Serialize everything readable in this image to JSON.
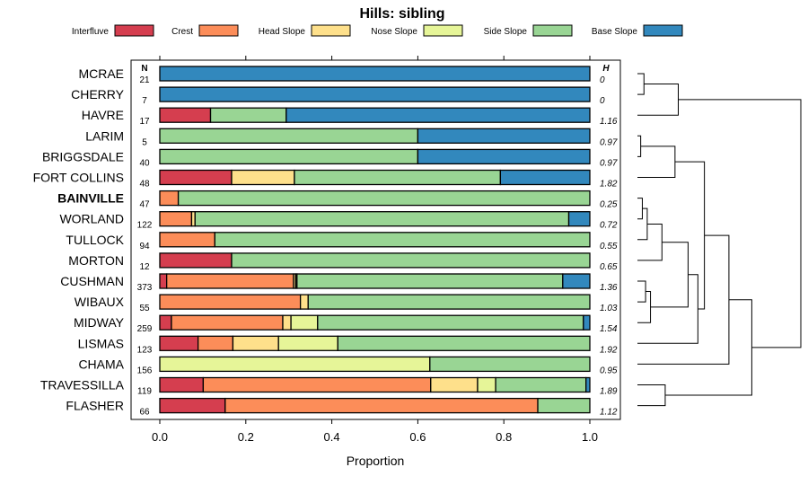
{
  "chart_data": {
    "type": "stacked-bar",
    "title": "Hills: sibling",
    "xlabel": "Proportion",
    "xlim": [
      0,
      1
    ],
    "xticks": [
      "0.0",
      "0.2",
      "0.4",
      "0.6",
      "0.8",
      "1.0"
    ],
    "n_header": "N",
    "h_header": "H",
    "legend": [
      {
        "name": "Interfluve",
        "color": "#d53e4f"
      },
      {
        "name": "Crest",
        "color": "#fc8d59"
      },
      {
        "name": "Head Slope",
        "color": "#fee08b"
      },
      {
        "name": "Nose Slope",
        "color": "#e6f598"
      },
      {
        "name": "Side Slope",
        "color": "#99d594"
      },
      {
        "name": "Base Slope",
        "color": "#3288bd"
      }
    ],
    "rows": [
      {
        "name": "MCRAE",
        "n": "21",
        "h": "0",
        "bold": false,
        "values": [
          0,
          0,
          0,
          0,
          0,
          1.0
        ]
      },
      {
        "name": "CHERRY",
        "n": "7",
        "h": "0",
        "bold": false,
        "values": [
          0,
          0,
          0,
          0,
          0,
          1.0
        ]
      },
      {
        "name": "HAVRE",
        "n": "17",
        "h": "1.16",
        "bold": false,
        "values": [
          0.118,
          0,
          0,
          0,
          0.176,
          0.706
        ]
      },
      {
        "name": "LARIM",
        "n": "5",
        "h": "0.97",
        "bold": false,
        "values": [
          0,
          0,
          0,
          0,
          0.6,
          0.4
        ]
      },
      {
        "name": "BRIGGSDALE",
        "n": "40",
        "h": "0.97",
        "bold": false,
        "values": [
          0,
          0,
          0,
          0,
          0.6,
          0.4
        ]
      },
      {
        "name": "FORT COLLINS",
        "n": "48",
        "h": "1.82",
        "bold": false,
        "values": [
          0.167,
          0,
          0.146,
          0,
          0.479,
          0.208
        ]
      },
      {
        "name": "BAINVILLE",
        "n": "47",
        "h": "0.25",
        "bold": true,
        "values": [
          0,
          0.043,
          0,
          0,
          0.957,
          0
        ]
      },
      {
        "name": "WORLAND",
        "n": "122",
        "h": "0.72",
        "bold": false,
        "values": [
          0,
          0.074,
          0.008,
          0,
          0.869,
          0.049
        ]
      },
      {
        "name": "TULLOCK",
        "n": "94",
        "h": "0.55",
        "bold": false,
        "values": [
          0,
          0.128,
          0,
          0,
          0.872,
          0
        ]
      },
      {
        "name": "MORTON",
        "n": "12",
        "h": "0.65",
        "bold": false,
        "values": [
          0.167,
          0,
          0,
          0,
          0.833,
          0
        ]
      },
      {
        "name": "CUSHMAN",
        "n": "373",
        "h": "1.36",
        "bold": false,
        "values": [
          0.016,
          0.295,
          0.005,
          0.003,
          0.618,
          0.063
        ]
      },
      {
        "name": "WIBAUX",
        "n": "55",
        "h": "1.03",
        "bold": false,
        "values": [
          0,
          0.327,
          0.018,
          0,
          0.655,
          0
        ]
      },
      {
        "name": "MIDWAY",
        "n": "259",
        "h": "1.54",
        "bold": false,
        "values": [
          0.027,
          0.259,
          0.019,
          0.062,
          0.618,
          0.015
        ]
      },
      {
        "name": "LISMAS",
        "n": "123",
        "h": "1.92",
        "bold": false,
        "values": [
          0.089,
          0.081,
          0.106,
          0.138,
          0.586,
          0
        ]
      },
      {
        "name": "CHAMA",
        "n": "156",
        "h": "0.95",
        "bold": false,
        "values": [
          0,
          0,
          0,
          0.628,
          0.372,
          0
        ]
      },
      {
        "name": "TRAVESSILLA",
        "n": "119",
        "h": "1.89",
        "bold": false,
        "values": [
          0.101,
          0.529,
          0.109,
          0.042,
          0.21,
          0.009
        ]
      },
      {
        "name": "FLASHER",
        "n": "66",
        "h": "1.12",
        "bold": false,
        "values": [
          0.152,
          0.727,
          0,
          0,
          0.121,
          0
        ]
      }
    ],
    "dendrogram": {
      "type": "hierarchical-clustering",
      "leaf_order": [
        "MCRAE",
        "CHERRY",
        "HAVRE",
        "LARIM",
        "BRIGGSDALE",
        "FORT COLLINS",
        "BAINVILLE",
        "WORLAND",
        "TULLOCK",
        "MORTON",
        "CUSHMAN",
        "WIBAUX",
        "MIDWAY",
        "LISMAS",
        "CHAMA",
        "TRAVESSILLA",
        "FLASHER"
      ],
      "merges": [
        {
          "a": 0,
          "b": 1,
          "height": 0.04
        },
        {
          "a": "M0",
          "b": 2,
          "height": 0.25
        },
        {
          "a": 3,
          "b": 4,
          "height": 0.02
        },
        {
          "a": "M2",
          "b": 5,
          "height": 0.23
        },
        {
          "a": 6,
          "b": 7,
          "height": 0.03
        },
        {
          "a": "M4",
          "b": 8,
          "height": 0.06
        },
        {
          "a": "M5",
          "b": 9,
          "height": 0.15
        },
        {
          "a": 10,
          "b": 11,
          "height": 0.05
        },
        {
          "a": "M7",
          "b": 12,
          "height": 0.08
        },
        {
          "a": "M6",
          "b": "M8",
          "height": 0.31
        },
        {
          "a": "M9",
          "b": 13,
          "height": 0.37
        },
        {
          "a": "M3",
          "b": "M10",
          "height": 0.41
        },
        {
          "a": "M11",
          "b": 14,
          "height": 0.56
        },
        {
          "a": 15,
          "b": 16,
          "height": 0.17
        },
        {
          "a": "M12",
          "b": "M13",
          "height": 0.7
        },
        {
          "a": "M1",
          "b": "M14",
          "height": 1.0
        }
      ]
    }
  }
}
